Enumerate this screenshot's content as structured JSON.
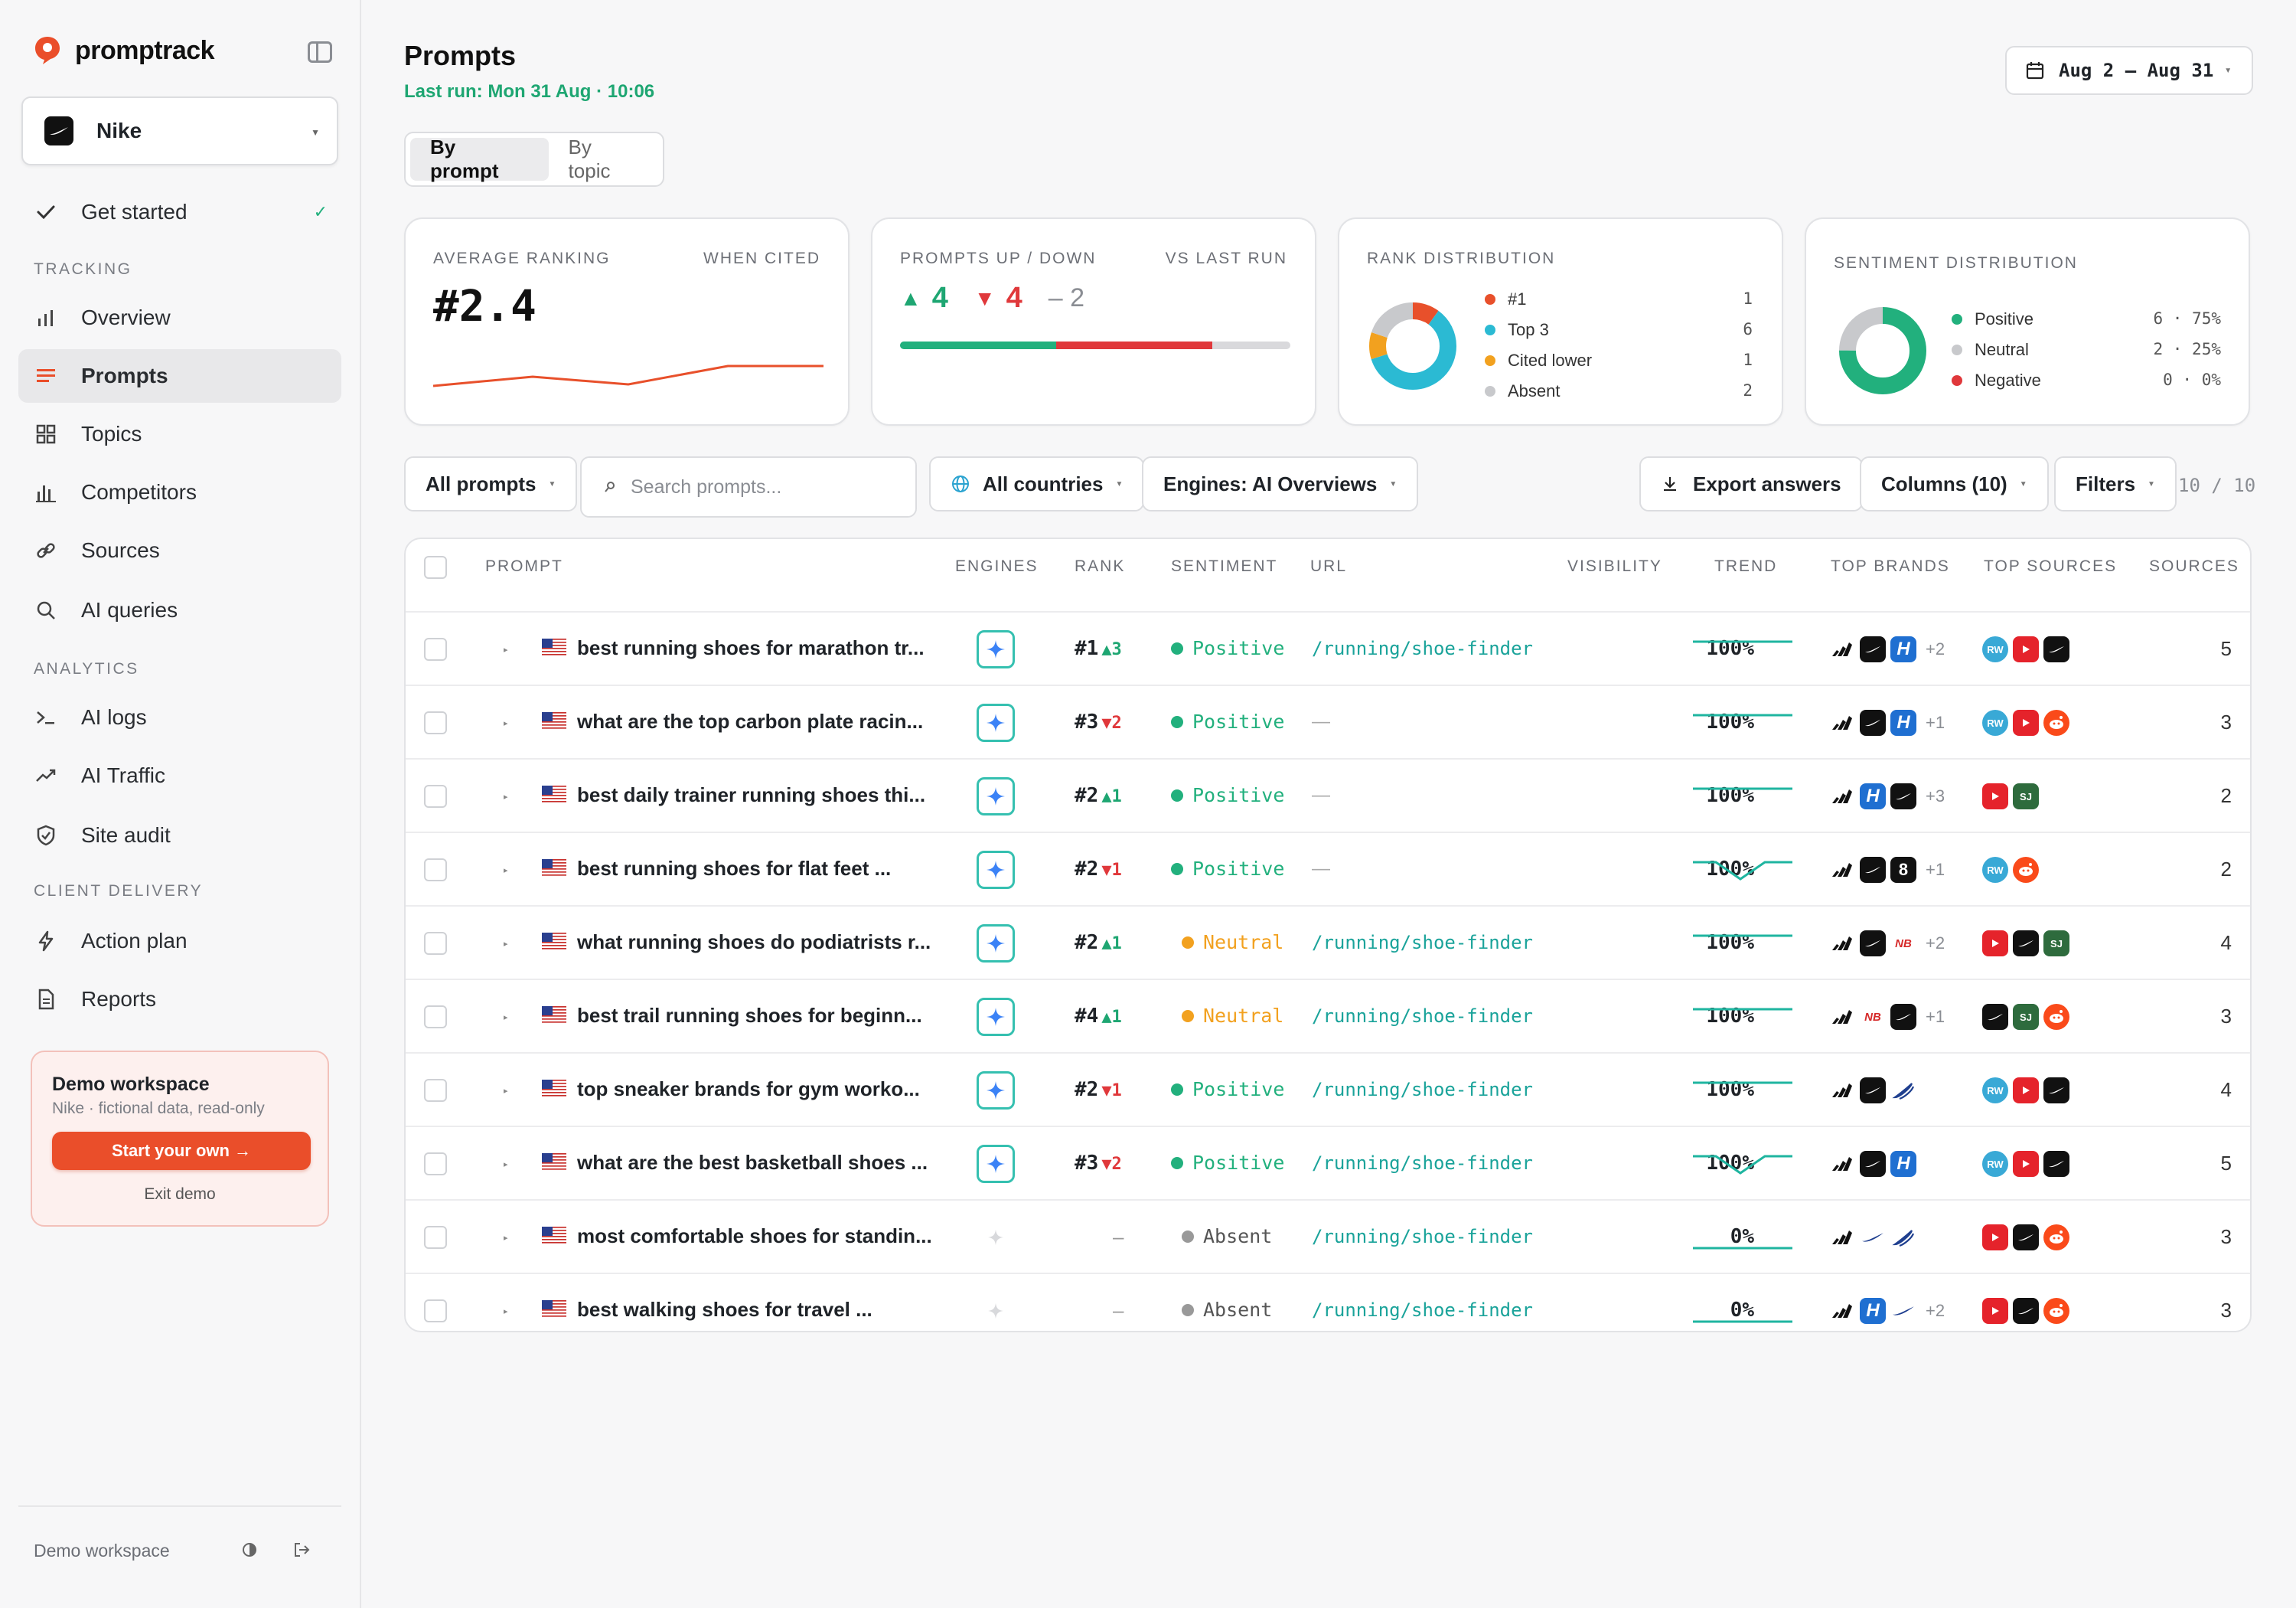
{
  "app": {
    "name": "promptrack"
  },
  "brand": {
    "name": "Nike"
  },
  "nav": {
    "get_started": "Get started",
    "tracking_label": "TRACKING",
    "analytics_label": "ANALYTICS",
    "client_label": "CLIENT DELIVERY",
    "items": {
      "overview": "Overview",
      "prompts": "Prompts",
      "topics": "Topics",
      "competitors": "Competitors",
      "sources": "Sources",
      "ai_queries": "AI queries",
      "ai_logs": "AI logs",
      "ai_traffic": "AI Traffic",
      "site_audit": "Site audit",
      "action_plan": "Action plan",
      "reports": "Reports"
    }
  },
  "demo": {
    "title": "Demo workspace",
    "subtitle": "Nike · fictional data, read-only",
    "button": "Start your own →",
    "exit": "Exit demo"
  },
  "footer": {
    "label": "Demo workspace"
  },
  "header": {
    "title": "Prompts",
    "last_run": "Last run: Mon 31 Aug · 10:06",
    "date_range": "Aug 2 – Aug 31",
    "tabs": [
      "By prompt",
      "By topic"
    ]
  },
  "cards": {
    "avg_rank": {
      "label": "AVERAGE RANKING",
      "sub": "WHEN CITED",
      "value": "#2.4"
    },
    "updown": {
      "label": "PROMPTS UP / DOWN",
      "sub": "VS LAST RUN",
      "up": "4",
      "down": "4",
      "same": "– 2",
      "up_fraction": 0.4,
      "down_fraction": 0.4
    },
    "rank_dist": {
      "label": "RANK DISTRIBUTION",
      "items": [
        {
          "name": "#1",
          "value": "1",
          "color": "#e8502b"
        },
        {
          "name": "Top 3",
          "value": "6",
          "color": "#2bbad3"
        },
        {
          "name": "Cited lower",
          "value": "1",
          "color": "#f2a11f"
        },
        {
          "name": "Absent",
          "value": "2",
          "color": "#c8c9cc"
        }
      ]
    },
    "sentiment_dist": {
      "label": "SENTIMENT DISTRIBUTION",
      "items": [
        {
          "name": "Positive",
          "value": "6 · 75%",
          "color": "#22b07d"
        },
        {
          "name": "Neutral",
          "value": "2 · 25%",
          "color": "#c8c9cc"
        },
        {
          "name": "Negative",
          "value": "0 · 0%",
          "color": "#e0383b"
        }
      ]
    }
  },
  "filters": {
    "all_prompts": "All prompts",
    "search_placeholder": "Search prompts...",
    "countries": "All countries",
    "engines": "Engines: AI Overviews",
    "export": "Export answers",
    "columns": "Columns (10)",
    "filters": "Filters",
    "count": "10 / 10"
  },
  "table": {
    "headers": [
      "PROMPT",
      "ENGINES",
      "RANK",
      "SENTIMENT",
      "URL",
      "VISIBILITY",
      "TREND",
      "TOP BRANDS",
      "TOP SOURCES",
      "SOURCES"
    ],
    "rows": [
      {
        "prompt": "best running shoes for marathon tr...",
        "engine": true,
        "rank": "#1",
        "delta": "▲3",
        "delta_dir": "up",
        "sentiment": "Positive",
        "url": "/running/shoe-finder",
        "visibility": "100%",
        "trend": "flat",
        "brands": [
          "adidas",
          "nike",
          "hoka"
        ],
        "brands_more": "+2",
        "sources": [
          "rw",
          "yt",
          "nike"
        ],
        "source_count": "5"
      },
      {
        "prompt": "what are the top carbon plate racin...",
        "engine": true,
        "rank": "#3",
        "delta": "▼2",
        "delta_dir": "down",
        "sentiment": "Positive",
        "url": "—",
        "visibility": "100%",
        "trend": "flat",
        "brands": [
          "adidas",
          "nike",
          "hoka"
        ],
        "brands_more": "+1",
        "sources": [
          "rw",
          "yt",
          "reddit"
        ],
        "source_count": "3"
      },
      {
        "prompt": "best daily trainer running shoes thi...",
        "engine": true,
        "rank": "#2",
        "delta": "▲1",
        "delta_dir": "up",
        "sentiment": "Positive",
        "url": "—",
        "visibility": "100%",
        "trend": "flat",
        "brands": [
          "adidas",
          "hoka",
          "nike"
        ],
        "brands_more": "+3",
        "sources": [
          "yt",
          "sj"
        ],
        "source_count": "2"
      },
      {
        "prompt": "best running shoes for flat feet ...",
        "engine": true,
        "rank": "#2",
        "delta": "▼1",
        "delta_dir": "down",
        "sentiment": "Positive",
        "url": "—",
        "visibility": "100%",
        "trend": "dip",
        "brands": [
          "adidas",
          "nike",
          "on"
        ],
        "brands_more": "+1",
        "sources": [
          "rw",
          "reddit"
        ],
        "source_count": "2"
      },
      {
        "prompt": "what running shoes do podiatrists r...",
        "engine": true,
        "rank": "#2",
        "delta": "▲1",
        "delta_dir": "up",
        "sentiment": "Neutral",
        "url": "/running/shoe-finder",
        "visibility": "100%",
        "trend": "flat",
        "brands": [
          "adidas",
          "nike",
          "nb"
        ],
        "brands_more": "+2",
        "sources": [
          "yt",
          "nike",
          "sj"
        ],
        "source_count": "4"
      },
      {
        "prompt": "best trail running shoes for beginn...",
        "engine": true,
        "rank": "#4",
        "delta": "▲1",
        "delta_dir": "up",
        "sentiment": "Neutral",
        "url": "/running/shoe-finder",
        "visibility": "100%",
        "trend": "flat",
        "brands": [
          "adidas",
          "nb",
          "nike"
        ],
        "brands_more": "+1",
        "sources": [
          "nike",
          "sj",
          "reddit"
        ],
        "source_count": "3"
      },
      {
        "prompt": "top sneaker brands for gym worko...",
        "engine": true,
        "rank": "#2",
        "delta": "▼1",
        "delta_dir": "down",
        "sentiment": "Positive",
        "url": "/running/shoe-finder",
        "visibility": "100%",
        "trend": "flat",
        "brands": [
          "adidas",
          "nike",
          "asics"
        ],
        "brands_more": "",
        "sources": [
          "rw",
          "yt",
          "nike"
        ],
        "source_count": "4"
      },
      {
        "prompt": "what are the best basketball shoes ...",
        "engine": true,
        "rank": "#3",
        "delta": "▼2",
        "delta_dir": "down",
        "sentiment": "Positive",
        "url": "/running/shoe-finder",
        "visibility": "100%",
        "trend": "dip",
        "brands": [
          "adidas",
          "nike",
          "hoka"
        ],
        "brands_more": "",
        "sources": [
          "rw",
          "yt",
          "nike"
        ],
        "source_count": "5"
      },
      {
        "prompt": "most comfortable shoes for standin...",
        "engine": false,
        "rank": "–",
        "delta": "",
        "delta_dir": "",
        "sentiment": "Absent",
        "url": "/running/shoe-finder",
        "visibility": "0%",
        "trend": "low",
        "brands": [
          "adidas",
          "nikeswoosh",
          "asics"
        ],
        "brands_more": "",
        "sources": [
          "yt",
          "nike",
          "reddit"
        ],
        "source_count": "3"
      },
      {
        "prompt": "best walking shoes for travel ...",
        "engine": false,
        "rank": "–",
        "delta": "",
        "delta_dir": "",
        "sentiment": "Absent",
        "url": "/running/shoe-finder",
        "visibility": "0%",
        "trend": "low",
        "brands": [
          "adidas",
          "hoka",
          "nikeswoosh"
        ],
        "brands_more": "+2",
        "sources": [
          "yt",
          "nike",
          "reddit"
        ],
        "source_count": "3"
      }
    ]
  },
  "brand_glyphs": {
    "hoka": "H",
    "on": "8",
    "rw": "RW",
    "sj": "SJ",
    "nb": "NB"
  },
  "colors": {
    "accent": "#ea4e2a",
    "positive": "#22b07d",
    "negative": "#e0383b",
    "neutral": "#f2a11f",
    "teal": "#1aa39a"
  }
}
